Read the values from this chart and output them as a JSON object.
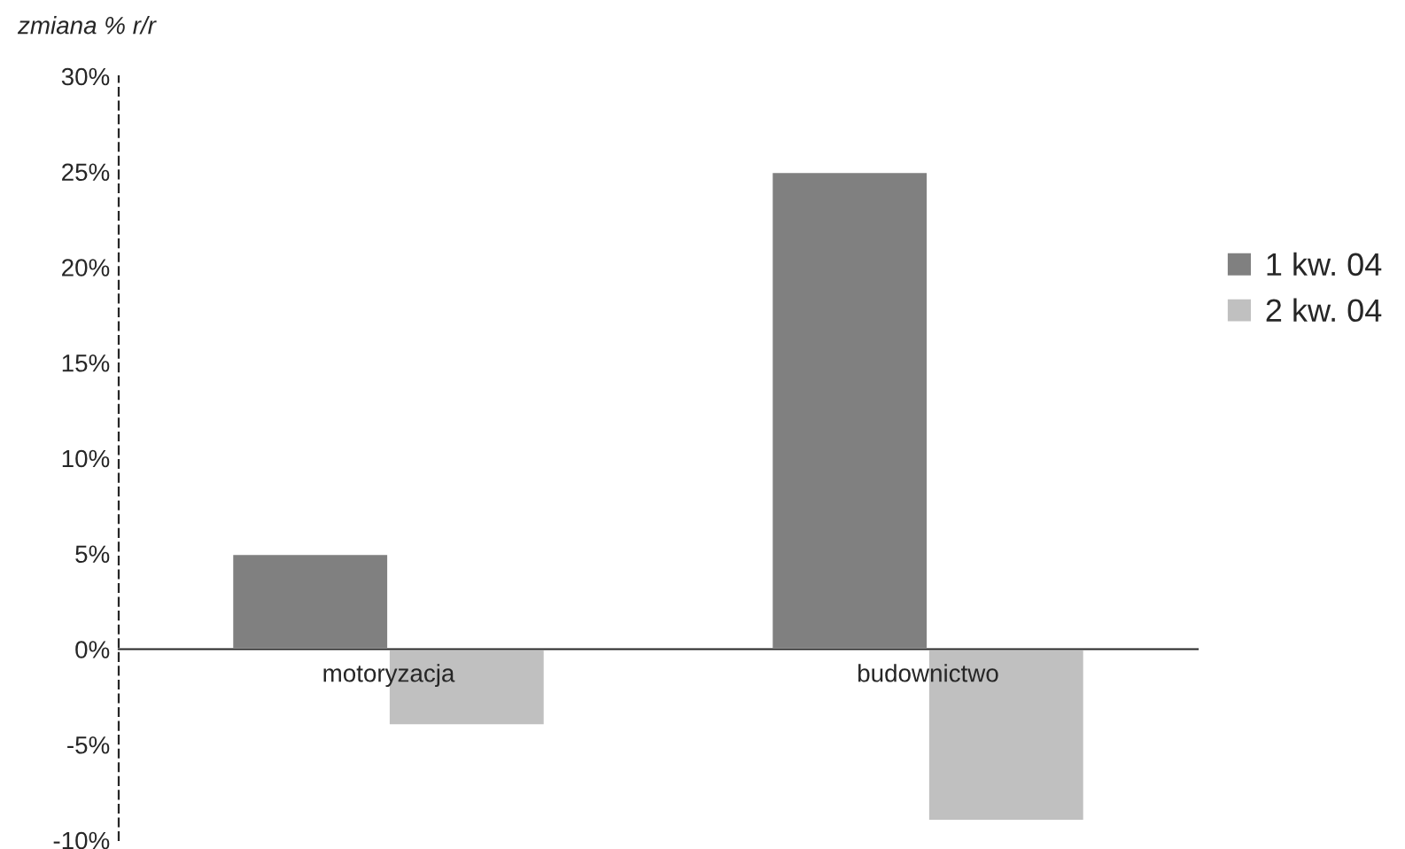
{
  "chart_data": {
    "type": "bar",
    "ylabel": "zmiana % r/r",
    "categories": [
      "motoryzacja",
      "budownictwo"
    ],
    "series": [
      {
        "name": "1 kw. 04",
        "color": "#808080",
        "values": [
          5,
          25
        ]
      },
      {
        "name": "2 kw. 04",
        "color": "#c0c0c0",
        "values": [
          -4,
          -9
        ]
      }
    ],
    "ylim": [
      -10,
      30
    ],
    "yticks": [
      {
        "value": -10,
        "label": "-10%"
      },
      {
        "value": -5,
        "label": "-5%"
      },
      {
        "value": 0,
        "label": "0%"
      },
      {
        "value": 5,
        "label": "5%"
      },
      {
        "value": 10,
        "label": "10%"
      },
      {
        "value": 15,
        "label": "15%"
      },
      {
        "value": 20,
        "label": "20%"
      },
      {
        "value": 25,
        "label": "25%"
      },
      {
        "value": 30,
        "label": "30%"
      }
    ],
    "legend": "right",
    "grid": false
  }
}
